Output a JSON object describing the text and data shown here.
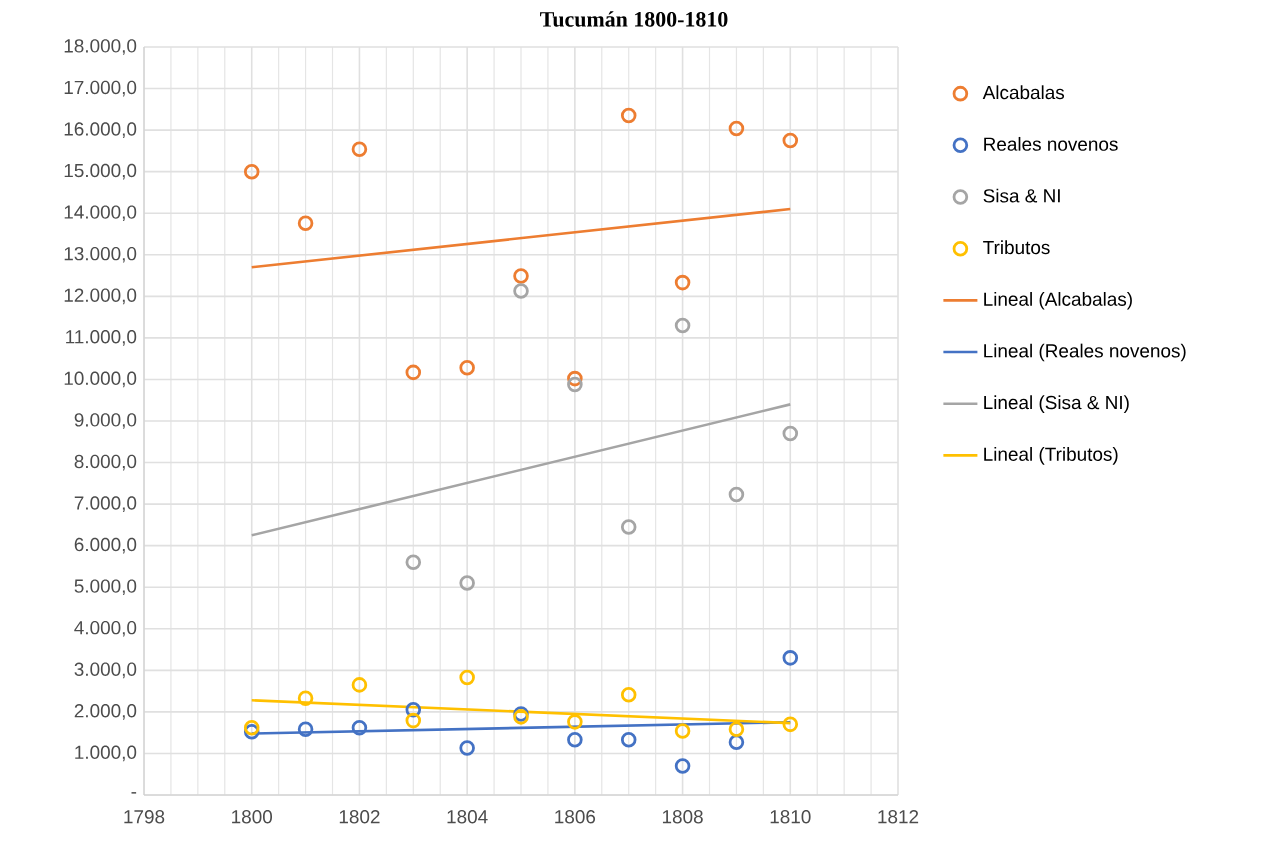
{
  "chart_data": {
    "type": "scatter",
    "title": "Tucumán 1800-1810",
    "x": [
      1800,
      1801,
      1802,
      1803,
      1804,
      1805,
      1806,
      1807,
      1808,
      1809,
      1810
    ],
    "series": [
      {
        "name": "Alcabalas",
        "marker": "circle",
        "color": "#ed7d31",
        "values": [
          15000,
          13760,
          15540,
          10170,
          10280,
          12490,
          10020,
          16350,
          12330,
          16040,
          15750
        ]
      },
      {
        "name": "Reales novenos",
        "marker": "circle",
        "color": "#4472c4",
        "values": [
          1520,
          1580,
          1620,
          2050,
          1130,
          1950,
          1330,
          1330,
          700,
          1270,
          3300
        ]
      },
      {
        "name": "Sisa & NI",
        "marker": "circle",
        "color": "#a5a5a5",
        "values": [
          null,
          null,
          null,
          5600,
          5100,
          12130,
          9880,
          6450,
          11300,
          7230,
          8700
        ]
      },
      {
        "name": "Tributos",
        "marker": "circle",
        "color": "#ffc000",
        "values": [
          1620,
          2330,
          2650,
          1790,
          2830,
          1880,
          1760,
          2410,
          1540,
          1580,
          1700
        ]
      },
      {
        "name": "Lineal (Alcabalas)",
        "type": "line",
        "marker": "none",
        "line_style": "solid",
        "color": "#ed7d31",
        "values": [
          12700,
          null,
          null,
          null,
          null,
          null,
          null,
          null,
          null,
          null,
          14100
        ]
      },
      {
        "name": "Lineal (Reales novenos)",
        "type": "line",
        "marker": "none",
        "line_style": "solid",
        "color": "#4472c4",
        "values": [
          1480,
          null,
          null,
          null,
          null,
          null,
          null,
          null,
          null,
          null,
          1750
        ]
      },
      {
        "name": "Lineal (Sisa & NI)",
        "type": "line",
        "marker": "none",
        "line_style": "solid",
        "color": "#a5a5a5",
        "values": [
          6250,
          null,
          null,
          null,
          null,
          null,
          null,
          null,
          null,
          null,
          9400
        ]
      },
      {
        "name": "Lineal (Tributos)",
        "type": "line",
        "marker": "none",
        "line_style": "solid",
        "color": "#ffc000",
        "values": [
          2280,
          null,
          null,
          null,
          null,
          null,
          null,
          null,
          null,
          null,
          1730
        ]
      }
    ],
    "xlim": [
      1798,
      1812
    ],
    "xticks": [
      1798,
      1800,
      1802,
      1804,
      1806,
      1808,
      1810,
      1812
    ],
    "ylim": [
      0,
      18000
    ],
    "yticks": [
      {
        "value": 0,
        "label": "-"
      },
      {
        "value": 1000,
        "label": "1.000,0"
      },
      {
        "value": 2000,
        "label": "2.000,0"
      },
      {
        "value": 3000,
        "label": "3.000,0"
      },
      {
        "value": 4000,
        "label": "4.000,0"
      },
      {
        "value": 5000,
        "label": "5.000,0"
      },
      {
        "value": 6000,
        "label": "6.000,0"
      },
      {
        "value": 7000,
        "label": "7.000,0"
      },
      {
        "value": 8000,
        "label": "8.000,0"
      },
      {
        "value": 9000,
        "label": "9.000,0"
      },
      {
        "value": 10000,
        "label": "10.000,0"
      },
      {
        "value": 11000,
        "label": "11.000,0"
      },
      {
        "value": 12000,
        "label": "12.000,0"
      },
      {
        "value": 13000,
        "label": "13.000,0"
      },
      {
        "value": 14000,
        "label": "14.000,0"
      },
      {
        "value": 15000,
        "label": "15.000,0"
      },
      {
        "value": 16000,
        "label": "16.000,0"
      },
      {
        "value": 17000,
        "label": "17.000,0"
      },
      {
        "value": 18000,
        "label": "18.000,0"
      }
    ],
    "grid": true,
    "legend": "right"
  }
}
